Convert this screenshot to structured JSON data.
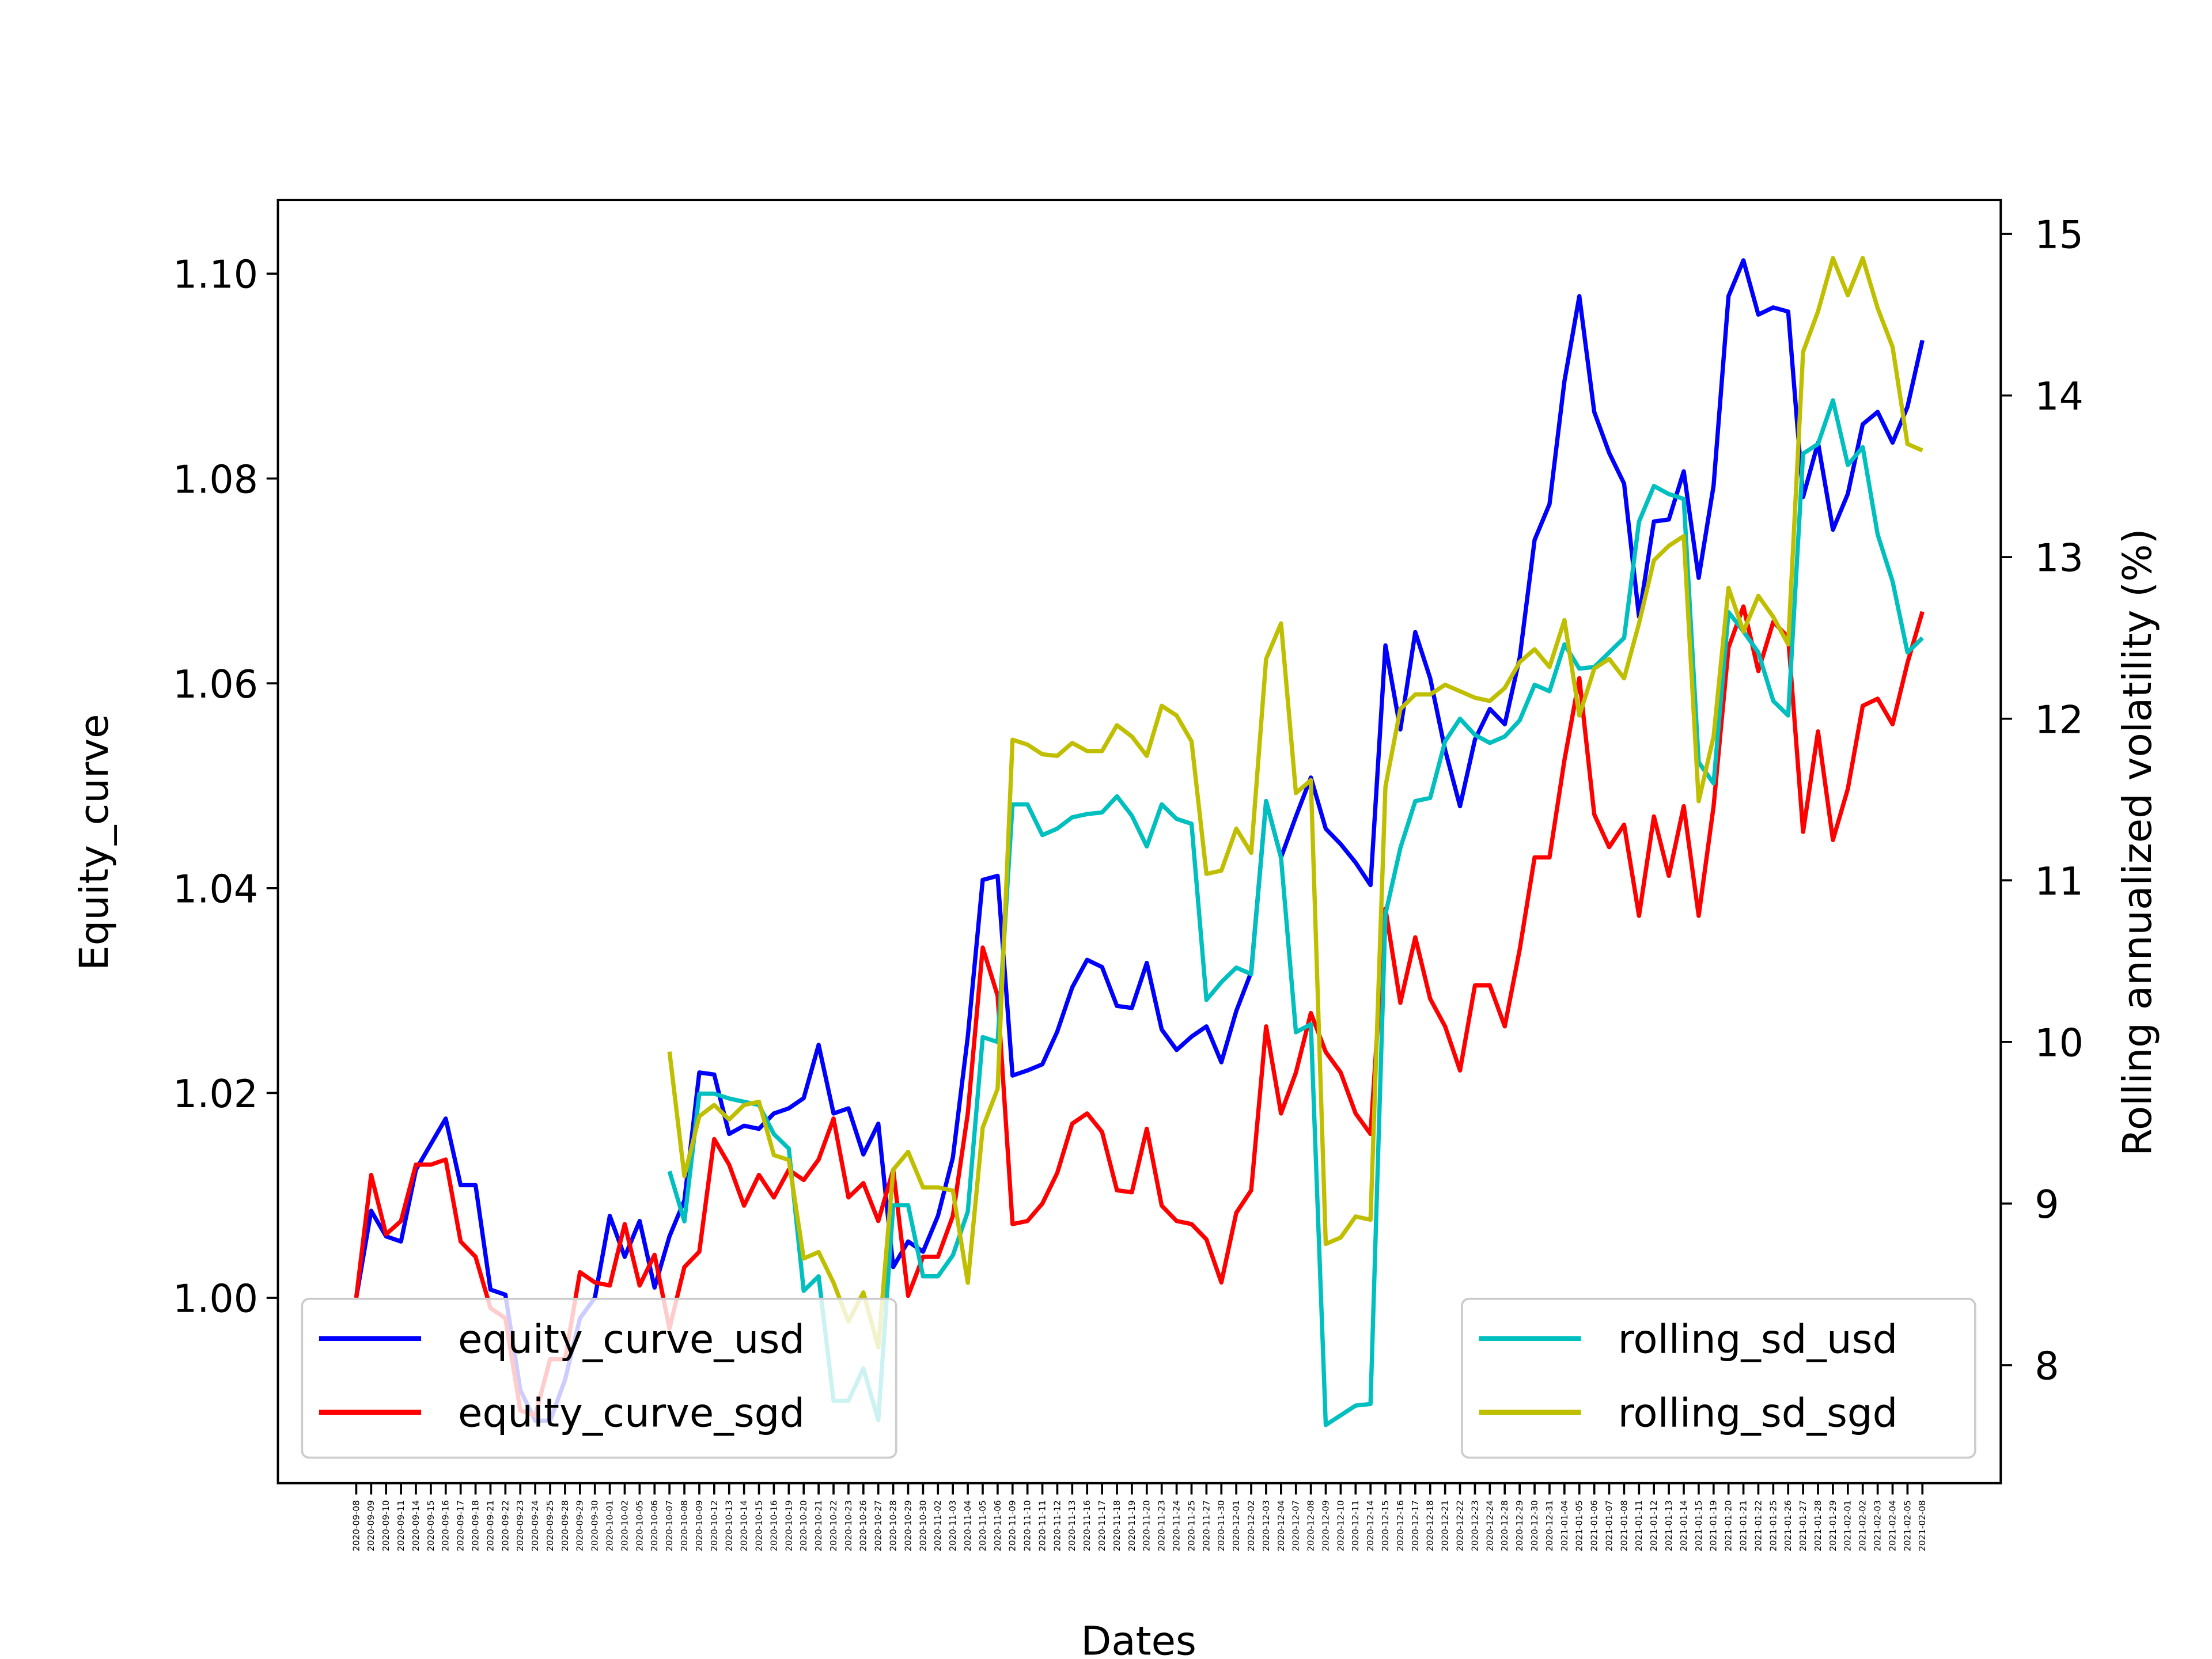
{
  "chart_data": {
    "type": "line",
    "xlabel": "Dates",
    "ylabel": "Equity_curve",
    "ylabel_right": "Rolling annualized volatility (%)",
    "ylim": [
      0.9819,
      1.1072
    ],
    "ylim_right": [
      7.27,
      15.21
    ],
    "yticks": [
      "1.00",
      "1.02",
      "1.04",
      "1.06",
      "1.08",
      "1.10"
    ],
    "yticks_right": [
      "8",
      "9",
      "10",
      "11",
      "12",
      "13",
      "14",
      "15"
    ],
    "grid": false,
    "legend_left": "lower-left",
    "legend_right": "lower-right",
    "x": [
      "2020-09-08",
      "2020-09-09",
      "2020-09-10",
      "2020-09-11",
      "2020-09-14",
      "2020-09-15",
      "2020-09-16",
      "2020-09-17",
      "2020-09-18",
      "2020-09-21",
      "2020-09-22",
      "2020-09-23",
      "2020-09-24",
      "2020-09-25",
      "2020-09-28",
      "2020-09-29",
      "2020-09-30",
      "2020-10-01",
      "2020-10-02",
      "2020-10-05",
      "2020-10-06",
      "2020-10-07",
      "2020-10-08",
      "2020-10-09",
      "2020-10-12",
      "2020-10-13",
      "2020-10-14",
      "2020-10-15",
      "2020-10-16",
      "2020-10-19",
      "2020-10-20",
      "2020-10-21",
      "2020-10-22",
      "2020-10-23",
      "2020-10-26",
      "2020-10-27",
      "2020-10-28",
      "2020-10-29",
      "2020-10-30",
      "2020-11-02",
      "2020-11-03",
      "2020-11-04",
      "2020-11-05",
      "2020-11-06",
      "2020-11-09",
      "2020-11-10",
      "2020-11-11",
      "2020-11-12",
      "2020-11-13",
      "2020-11-16",
      "2020-11-17",
      "2020-11-18",
      "2020-11-19",
      "2020-11-20",
      "2020-11-23",
      "2020-11-24",
      "2020-11-25",
      "2020-11-27",
      "2020-11-30",
      "2020-12-01",
      "2020-12-02",
      "2020-12-03",
      "2020-12-04",
      "2020-12-07",
      "2020-12-08",
      "2020-12-09",
      "2020-12-10",
      "2020-12-11",
      "2020-12-14",
      "2020-12-15",
      "2020-12-16",
      "2020-12-17",
      "2020-12-18",
      "2020-12-21",
      "2020-12-22",
      "2020-12-23",
      "2020-12-24",
      "2020-12-28",
      "2020-12-29",
      "2020-12-30",
      "2020-12-31",
      "2021-01-04",
      "2021-01-05",
      "2021-01-06",
      "2021-01-07",
      "2021-01-08",
      "2021-01-11",
      "2021-01-12",
      "2021-01-13",
      "2021-01-14",
      "2021-01-15",
      "2021-01-19",
      "2021-01-20",
      "2021-01-21",
      "2021-01-22",
      "2021-01-25",
      "2021-01-26",
      "2021-01-27",
      "2021-01-28",
      "2021-01-29",
      "2021-02-01",
      "2021-02-02",
      "2021-02-03",
      "2021-02-04",
      "2021-02-05",
      "2021-02-08"
    ],
    "series": [
      {
        "name": "equity_curve_usd",
        "axis": "left",
        "color": "#0000ff",
        "values": [
          1.0,
          1.0085,
          1.006,
          1.0055,
          1.0125,
          1.015,
          1.0175,
          1.011,
          1.011,
          1.0008,
          1.0003,
          0.991,
          0.988,
          0.988,
          0.992,
          0.998,
          1.0,
          1.008,
          1.004,
          1.0075,
          1.001,
          1.006,
          1.0095,
          1.022,
          1.0218,
          1.016,
          1.0168,
          1.0165,
          1.018,
          1.0185,
          1.0195,
          1.0247,
          1.018,
          1.0185,
          1.014,
          1.017,
          1.003,
          1.0055,
          1.0045,
          1.008,
          1.0137,
          1.0255,
          1.0408,
          1.0412,
          1.0217,
          1.0222,
          1.0228,
          1.026,
          1.0303,
          1.033,
          1.0323,
          1.0285,
          1.0283,
          1.0327,
          1.0262,
          1.0242,
          1.0255,
          1.0265,
          1.023,
          1.028,
          1.0318,
          1.0485,
          1.043,
          1.047,
          1.0508,
          1.0458,
          1.0443,
          1.0425,
          1.0403,
          1.0637,
          1.0555,
          1.065,
          1.0605,
          1.0535,
          1.048,
          1.0545,
          1.0575,
          1.056,
          1.0625,
          1.074,
          1.0775,
          1.0895,
          1.0978,
          1.0865,
          1.0825,
          1.0795,
          1.0665,
          1.0758,
          1.076,
          1.0807,
          1.0703,
          1.0793,
          1.0978,
          1.1013,
          1.096,
          1.0967,
          1.0963,
          1.0782,
          1.0835,
          1.075,
          1.0785,
          1.0853,
          1.0865,
          1.0835,
          1.087,
          1.0935
        ]
      },
      {
        "name": "equity_curve_sgd",
        "axis": "left",
        "color": "#ff0000",
        "values": [
          1.0,
          1.012,
          1.0062,
          1.0075,
          1.013,
          1.013,
          1.0135,
          1.0055,
          1.004,
          0.999,
          0.998,
          0.989,
          0.9885,
          0.994,
          0.994,
          1.0025,
          1.0015,
          1.0012,
          1.0072,
          1.0012,
          1.0042,
          0.997,
          1.003,
          1.0045,
          1.0155,
          1.013,
          1.009,
          1.012,
          1.0098,
          1.0125,
          1.0115,
          1.0135,
          1.0175,
          1.0098,
          1.0112,
          1.0075,
          1.0125,
          1.0002,
          1.004,
          1.004,
          1.008,
          1.018,
          1.0342,
          1.0295,
          1.0072,
          1.0075,
          1.0092,
          1.0122,
          1.017,
          1.018,
          1.0162,
          1.0105,
          1.0103,
          1.0165,
          1.009,
          1.0075,
          1.0072,
          1.0057,
          1.0015,
          1.0083,
          1.0105,
          1.0265,
          1.018,
          1.022,
          1.0278,
          1.024,
          1.022,
          1.018,
          1.016,
          1.038,
          1.0288,
          1.0352,
          1.0292,
          1.0265,
          1.0222,
          1.0305,
          1.0305,
          1.0265,
          1.034,
          1.043,
          1.043,
          1.0525,
          1.0605,
          1.0472,
          1.044,
          1.0462,
          1.0373,
          1.047,
          1.0412,
          1.048,
          1.0373,
          1.048,
          1.0635,
          1.0675,
          1.0612,
          1.066,
          1.0645,
          1.0455,
          1.0553,
          1.0447,
          1.0497,
          1.0578,
          1.0585,
          1.056,
          1.062,
          1.067
        ]
      },
      {
        "name": "rolling_sd_usd",
        "axis": "right",
        "color": "#00bfbf",
        "values": [
          null,
          null,
          null,
          null,
          null,
          null,
          null,
          null,
          null,
          null,
          null,
          null,
          null,
          null,
          null,
          null,
          null,
          null,
          null,
          null,
          null,
          9.2,
          8.89,
          9.68,
          9.68,
          9.65,
          9.63,
          9.61,
          9.43,
          9.34,
          8.46,
          8.55,
          7.78,
          7.78,
          7.98,
          7.66,
          8.99,
          8.99,
          8.55,
          8.55,
          8.68,
          8.95,
          10.03,
          10.0,
          11.47,
          11.47,
          11.28,
          11.32,
          11.39,
          11.41,
          11.42,
          11.52,
          11.4,
          11.21,
          11.47,
          11.38,
          11.35,
          10.26,
          10.37,
          10.46,
          10.42,
          11.49,
          11.14,
          10.06,
          10.11,
          7.63,
          7.69,
          7.75,
          7.76,
          10.79,
          11.2,
          11.49,
          11.51,
          11.86,
          12.0,
          11.9,
          11.85,
          11.89,
          11.99,
          12.21,
          12.17,
          12.46,
          12.31,
          12.32,
          12.41,
          12.5,
          13.22,
          13.44,
          13.39,
          13.36,
          11.73,
          11.6,
          12.66,
          12.54,
          12.41,
          12.11,
          12.02,
          13.64,
          13.7,
          13.97,
          13.57,
          13.68,
          13.14,
          12.85,
          12.41,
          12.5
        ]
      },
      {
        "name": "rolling_sd_sgd",
        "axis": "right",
        "color": "#bfbf00",
        "values": [
          null,
          null,
          null,
          null,
          null,
          null,
          null,
          null,
          null,
          null,
          null,
          null,
          null,
          null,
          null,
          null,
          null,
          null,
          null,
          null,
          null,
          9.94,
          9.17,
          9.54,
          9.61,
          9.52,
          9.61,
          9.63,
          9.3,
          9.27,
          8.66,
          8.7,
          8.51,
          8.27,
          8.45,
          8.11,
          9.21,
          9.32,
          9.1,
          9.1,
          9.08,
          8.51,
          9.47,
          9.71,
          11.87,
          11.84,
          11.78,
          11.77,
          11.85,
          11.8,
          11.8,
          11.96,
          11.89,
          11.77,
          12.08,
          12.02,
          11.86,
          11.04,
          11.06,
          11.32,
          11.17,
          12.37,
          12.59,
          11.54,
          11.62,
          8.75,
          8.79,
          8.92,
          8.9,
          11.58,
          12.06,
          12.15,
          12.15,
          12.21,
          12.17,
          12.13,
          12.11,
          12.19,
          12.35,
          12.43,
          12.32,
          12.61,
          12.02,
          12.31,
          12.37,
          12.25,
          12.59,
          12.98,
          13.07,
          13.13,
          11.49,
          11.89,
          12.81,
          12.54,
          12.76,
          12.63,
          12.46,
          14.27,
          14.52,
          14.85,
          14.62,
          14.85,
          14.54,
          14.3,
          13.7,
          13.66
        ]
      }
    ]
  }
}
